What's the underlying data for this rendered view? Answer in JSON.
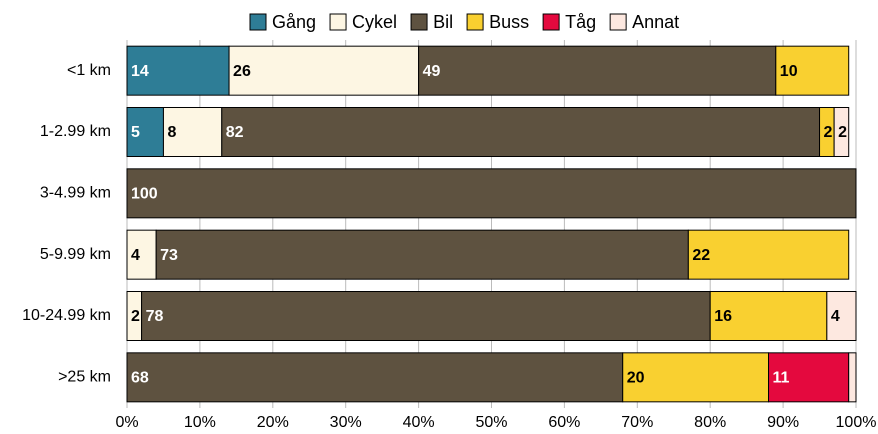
{
  "chart_data": {
    "type": "stacked_barh",
    "categories": [
      "<1 km",
      "1-2.99 km",
      "3-4.99 km",
      "5-9.99 km",
      "10-24.99 km",
      ">25 km"
    ],
    "series": [
      {
        "name": "Gång",
        "color": "#2e7d96",
        "values": [
          14,
          5,
          null,
          null,
          null,
          null
        ]
      },
      {
        "name": "Cykel",
        "color": "#fdf6e3",
        "values": [
          26,
          8,
          null,
          4,
          2,
          null
        ]
      },
      {
        "name": "Bil",
        "color": "#5e5240",
        "values": [
          49,
          82,
          100,
          73,
          78,
          68
        ]
      },
      {
        "name": "Buss",
        "color": "#f9d030",
        "values": [
          10,
          2,
          null,
          22,
          16,
          20
        ]
      },
      {
        "name": "Tåg",
        "color": "#e4093e",
        "values": [
          null,
          null,
          null,
          null,
          null,
          11
        ]
      },
      {
        "name": "Annat",
        "color": "#fde8e0",
        "values": [
          null,
          2,
          null,
          null,
          4,
          1
        ],
        "value_labels": [
          null,
          "2",
          null,
          null,
          "4",
          null
        ]
      }
    ],
    "xlim": [
      0,
      100
    ],
    "xticks": [
      {
        "value": 0,
        "label": "0%"
      },
      {
        "value": 10,
        "label": "10%"
      },
      {
        "value": 20,
        "label": "20%"
      },
      {
        "value": 30,
        "label": "30%"
      },
      {
        "value": 40,
        "label": "40%"
      },
      {
        "value": 50,
        "label": "50%"
      },
      {
        "value": 60,
        "label": "60%"
      },
      {
        "value": 70,
        "label": "70%"
      },
      {
        "value": 80,
        "label": "80%"
      },
      {
        "value": 90,
        "label": "90%"
      },
      {
        "value": 100,
        "label": "100%"
      }
    ],
    "grid": true,
    "legend": "top"
  }
}
